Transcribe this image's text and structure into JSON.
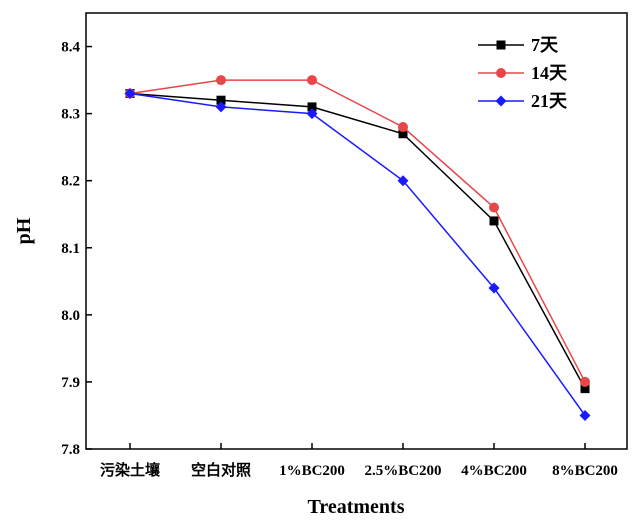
{
  "chart_data": {
    "type": "line",
    "xlabel": "Treatments",
    "ylabel": "pH",
    "ylim": [
      7.8,
      8.45
    ],
    "yticks": [
      "7.8",
      "7.9",
      "8.0",
      "8.1",
      "8.2",
      "8.3",
      "8.4"
    ],
    "categories": [
      "污染土壤",
      "空白对照",
      "1%BC200",
      "2.5%BC200",
      "4%BC200",
      "8%BC200"
    ],
    "grid": false,
    "legend_position": "top-right",
    "series": [
      {
        "name": "7天",
        "marker": "square",
        "color": "#000000",
        "values": [
          8.33,
          8.32,
          8.31,
          8.27,
          8.14,
          7.89
        ]
      },
      {
        "name": "14天",
        "marker": "circle",
        "color": "#e8474a",
        "values": [
          8.33,
          8.35,
          8.35,
          8.28,
          8.16,
          7.9
        ]
      },
      {
        "name": "21天",
        "marker": "diamond",
        "color": "#1a1aff",
        "values": [
          8.33,
          8.31,
          8.3,
          8.2,
          8.04,
          7.85
        ]
      }
    ]
  }
}
